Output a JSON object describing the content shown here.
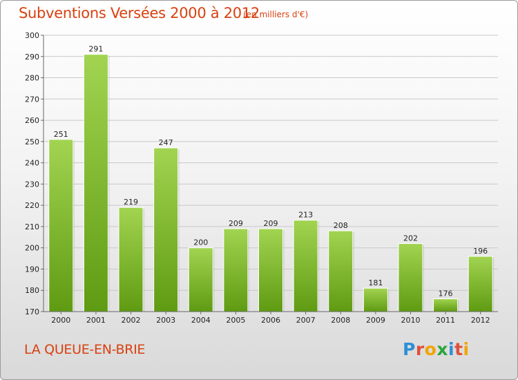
{
  "header": {
    "title": "Subventions Versées 2000 à 2012",
    "subtitle": "(en milliers d'€)"
  },
  "footer": {
    "commune": "LA QUEUE-EN-BRIE",
    "logo_text": "Proxiti"
  },
  "colors": {
    "title": "#d9400f",
    "bar_light": "#a2d451",
    "bar_dark": "#5f9b12",
    "grid": "#c8c8c8"
  },
  "chart_data": {
    "type": "bar",
    "title": "Subventions Versées 2000 à 2012",
    "subtitle": "(en milliers d'€)",
    "categories": [
      "2000",
      "2001",
      "2002",
      "2003",
      "2004",
      "2005",
      "2006",
      "2007",
      "2008",
      "2009",
      "2010",
      "2011",
      "2012"
    ],
    "values": [
      251,
      291,
      219,
      247,
      200,
      209,
      209,
      213,
      208,
      181,
      202,
      176,
      196
    ],
    "ylim": [
      170,
      300
    ],
    "yticks": [
      170,
      180,
      190,
      200,
      210,
      220,
      230,
      240,
      250,
      260,
      270,
      280,
      290,
      300
    ],
    "grid": true,
    "data_labels": true
  }
}
